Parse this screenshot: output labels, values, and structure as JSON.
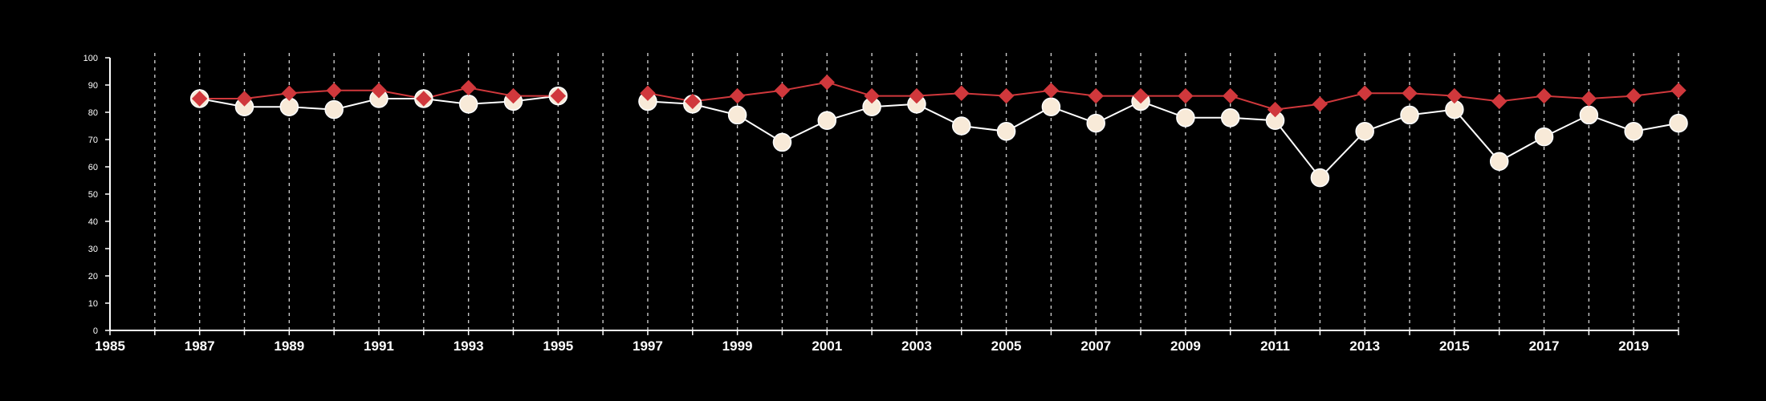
{
  "chart_data": {
    "type": "line",
    "title": "",
    "xlabel": "",
    "ylabel": "",
    "xlim": [
      1985,
      2020
    ],
    "ylim": [
      0,
      100
    ],
    "x_ticks": [
      "1985",
      "1987",
      "1989",
      "1991",
      "1993",
      "1995",
      "1997",
      "1999",
      "2001",
      "2003",
      "2005",
      "2007",
      "2009",
      "2011",
      "2013",
      "2015",
      "2017",
      "2019"
    ],
    "y_ticks": [
      "0",
      "10",
      "20",
      "30",
      "40",
      "50",
      "60",
      "70",
      "80",
      "90",
      "100"
    ],
    "grid": "vertical dashed lines at every year",
    "legend": "none",
    "background_color": "#000000",
    "axis_color": "#ffffff",
    "series": [
      {
        "marker": "diamond",
        "color": "#d0383c",
        "points": [
          {
            "x": 1987,
            "y": 85
          },
          {
            "x": 1988,
            "y": 85
          },
          {
            "x": 1989,
            "y": 87
          },
          {
            "x": 1990,
            "y": 88
          },
          {
            "x": 1991,
            "y": 88
          },
          {
            "x": 1992,
            "y": 85
          },
          {
            "x": 1993,
            "y": 89
          },
          {
            "x": 1994,
            "y": 86
          },
          {
            "x": 1995,
            "y": 86
          },
          {
            "x": 1997,
            "y": 87
          },
          {
            "x": 1998,
            "y": 84
          },
          {
            "x": 1999,
            "y": 86
          },
          {
            "x": 2000,
            "y": 88
          },
          {
            "x": 2001,
            "y": 91
          },
          {
            "x": 2002,
            "y": 86
          },
          {
            "x": 2003,
            "y": 86
          },
          {
            "x": 2004,
            "y": 87
          },
          {
            "x": 2005,
            "y": 86
          },
          {
            "x": 2006,
            "y": 88
          },
          {
            "x": 2007,
            "y": 86
          },
          {
            "x": 2008,
            "y": 86
          },
          {
            "x": 2009,
            "y": 86
          },
          {
            "x": 2010,
            "y": 86
          },
          {
            "x": 2011,
            "y": 81
          },
          {
            "x": 2012,
            "y": 83
          },
          {
            "x": 2013,
            "y": 87
          },
          {
            "x": 2014,
            "y": 87
          },
          {
            "x": 2015,
            "y": 86
          },
          {
            "x": 2016,
            "y": 84
          },
          {
            "x": 2017,
            "y": 86
          },
          {
            "x": 2018,
            "y": 85
          },
          {
            "x": 2019,
            "y": 86
          },
          {
            "x": 2020,
            "y": 88
          }
        ]
      },
      {
        "marker": "circle",
        "color": "#f8ead8",
        "points": [
          {
            "x": 1987,
            "y": 85
          },
          {
            "x": 1988,
            "y": 82
          },
          {
            "x": 1989,
            "y": 82
          },
          {
            "x": 1990,
            "y": 81
          },
          {
            "x": 1991,
            "y": 85
          },
          {
            "x": 1992,
            "y": 85
          },
          {
            "x": 1993,
            "y": 83
          },
          {
            "x": 1994,
            "y": 84
          },
          {
            "x": 1995,
            "y": 86
          },
          {
            "x": 1997,
            "y": 84
          },
          {
            "x": 1998,
            "y": 83
          },
          {
            "x": 1999,
            "y": 79
          },
          {
            "x": 2000,
            "y": 69
          },
          {
            "x": 2001,
            "y": 77
          },
          {
            "x": 2002,
            "y": 82
          },
          {
            "x": 2003,
            "y": 83
          },
          {
            "x": 2004,
            "y": 75
          },
          {
            "x": 2005,
            "y": 73
          },
          {
            "x": 2006,
            "y": 82
          },
          {
            "x": 2007,
            "y": 76
          },
          {
            "x": 2008,
            "y": 84
          },
          {
            "x": 2009,
            "y": 78
          },
          {
            "x": 2010,
            "y": 78
          },
          {
            "x": 2011,
            "y": 77
          },
          {
            "x": 2012,
            "y": 56
          },
          {
            "x": 2013,
            "y": 73
          },
          {
            "x": 2014,
            "y": 79
          },
          {
            "x": 2015,
            "y": 81
          },
          {
            "x": 2016,
            "y": 62
          },
          {
            "x": 2017,
            "y": 71
          },
          {
            "x": 2018,
            "y": 79
          },
          {
            "x": 2019,
            "y": 73
          },
          {
            "x": 2020,
            "y": 76
          }
        ]
      }
    ]
  }
}
